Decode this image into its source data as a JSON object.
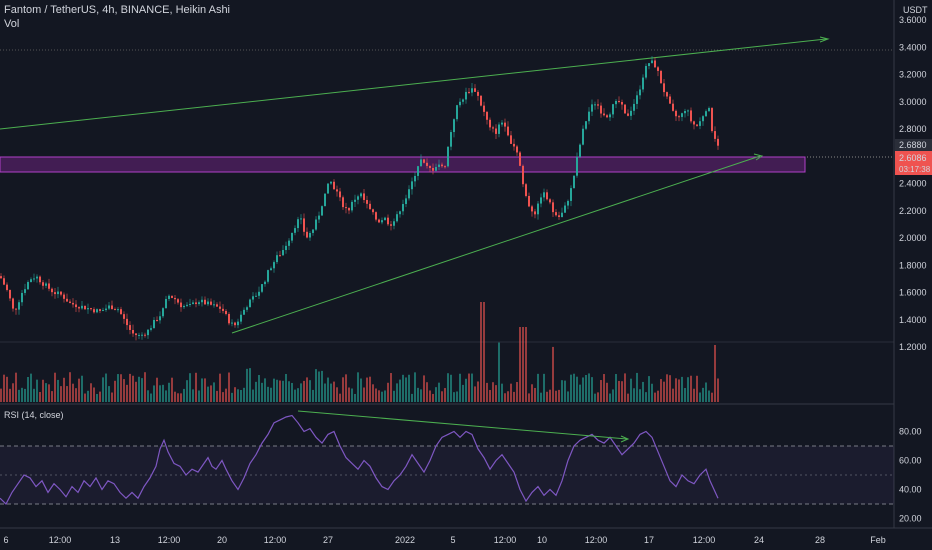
{
  "header": {
    "title": "Fantom / TetherUS, 4h, BINANCE, Heikin Ashi",
    "vol_label": "Vol",
    "currency": "USDT"
  },
  "colors": {
    "background": "#131722",
    "up": "#26a69a",
    "down": "#ef5350",
    "trendline": "#4caf50",
    "zone": "#9c27b0",
    "rsi": "#7e57c2",
    "grid": "#2a2e39"
  },
  "price_badges": {
    "last": "2.6086",
    "countdown": "03:17:38",
    "prev": "2.6880"
  },
  "rsi_label": "RSI (14, close)",
  "chart_data": [
    {
      "type": "candlestick",
      "title": "Fantom / TetherUS, 4h, BINANCE, Heikin Ashi",
      "ylabel": "USDT",
      "ylim": [
        1.2,
        3.6
      ],
      "y_ticks": [
        "3.6000",
        "3.4000",
        "3.2000",
        "3.0000",
        "2.8000",
        "2.6000",
        "2.4000",
        "2.2000",
        "2.0000",
        "1.8000",
        "1.6000",
        "1.4000",
        "1.2000"
      ],
      "x_ticks": [
        "6",
        "12:00",
        "13",
        "12:00",
        "20",
        "12:00",
        "27",
        "2022",
        "5",
        "12:00",
        "10",
        "12:00",
        "17",
        "12:00",
        "24",
        "28",
        "Feb"
      ],
      "close_path": [
        [
          0,
          1.72
        ],
        [
          8,
          1.6
        ],
        [
          14,
          1.45
        ],
        [
          22,
          1.6
        ],
        [
          30,
          1.7
        ],
        [
          36,
          1.72
        ],
        [
          44,
          1.66
        ],
        [
          54,
          1.6
        ],
        [
          62,
          1.58
        ],
        [
          70,
          1.52
        ],
        [
          80,
          1.5
        ],
        [
          90,
          1.48
        ],
        [
          100,
          1.46
        ],
        [
          110,
          1.5
        ],
        [
          118,
          1.48
        ],
        [
          124,
          1.4
        ],
        [
          132,
          1.3
        ],
        [
          140,
          1.28
        ],
        [
          148,
          1.32
        ],
        [
          156,
          1.4
        ],
        [
          162,
          1.45
        ],
        [
          168,
          1.58
        ],
        [
          174,
          1.56
        ],
        [
          182,
          1.5
        ],
        [
          190,
          1.5
        ],
        [
          198,
          1.54
        ],
        [
          206,
          1.52
        ],
        [
          214,
          1.5
        ],
        [
          222,
          1.48
        ],
        [
          228,
          1.4
        ],
        [
          234,
          1.35
        ],
        [
          240,
          1.42
        ],
        [
          246,
          1.5
        ],
        [
          252,
          1.55
        ],
        [
          258,
          1.6
        ],
        [
          264,
          1.68
        ],
        [
          270,
          1.78
        ],
        [
          276,
          1.85
        ],
        [
          282,
          1.9
        ],
        [
          288,
          1.98
        ],
        [
          294,
          2.08
        ],
        [
          300,
          2.15
        ],
        [
          306,
          2.0
        ],
        [
          312,
          2.05
        ],
        [
          318,
          2.15
        ],
        [
          324,
          2.3
        ],
        [
          330,
          2.42
        ],
        [
          336,
          2.35
        ],
        [
          342,
          2.25
        ],
        [
          348,
          2.2
        ],
        [
          354,
          2.28
        ],
        [
          360,
          2.33
        ],
        [
          366,
          2.25
        ],
        [
          372,
          2.18
        ],
        [
          378,
          2.12
        ],
        [
          384,
          2.15
        ],
        [
          390,
          2.1
        ],
        [
          396,
          2.14
        ],
        [
          402,
          2.25
        ],
        [
          408,
          2.32
        ],
        [
          414,
          2.45
        ],
        [
          420,
          2.58
        ],
        [
          426,
          2.52
        ],
        [
          432,
          2.5
        ],
        [
          438,
          2.55
        ],
        [
          444,
          2.5
        ],
        [
          450,
          2.75
        ],
        [
          456,
          2.95
        ],
        [
          462,
          3.02
        ],
        [
          468,
          3.08
        ],
        [
          474,
          3.1
        ],
        [
          478,
          3.04
        ],
        [
          484,
          2.92
        ],
        [
          490,
          2.8
        ],
        [
          496,
          2.78
        ],
        [
          502,
          2.86
        ],
        [
          508,
          2.74
        ],
        [
          514,
          2.68
        ],
        [
          518,
          2.62
        ],
        [
          524,
          2.35
        ],
        [
          530,
          2.22
        ],
        [
          536,
          2.18
        ],
        [
          542,
          2.34
        ],
        [
          548,
          2.28
        ],
        [
          554,
          2.18
        ],
        [
          560,
          2.15
        ],
        [
          566,
          2.24
        ],
        [
          572,
          2.38
        ],
        [
          578,
          2.62
        ],
        [
          584,
          2.82
        ],
        [
          590,
          2.95
        ],
        [
          596,
          3.0
        ],
        [
          602,
          2.92
        ],
        [
          608,
          2.9
        ],
        [
          614,
          2.98
        ],
        [
          620,
          3.0
        ],
        [
          626,
          2.88
        ],
        [
          632,
          2.96
        ],
        [
          638,
          3.05
        ],
        [
          644,
          3.22
        ],
        [
          650,
          3.3
        ],
        [
          656,
          3.26
        ],
        [
          662,
          3.12
        ],
        [
          668,
          3.0
        ],
        [
          674,
          2.9
        ],
        [
          680,
          2.88
        ],
        [
          686,
          2.96
        ],
        [
          692,
          2.84
        ],
        [
          698,
          2.82
        ],
        [
          704,
          2.92
        ],
        [
          708,
          2.98
        ],
        [
          712,
          2.8
        ],
        [
          716,
          2.72
        ],
        [
          720,
          2.6
        ]
      ]
    },
    {
      "type": "bar",
      "title": "Vol",
      "description": "volume bars colored by candle direction"
    },
    {
      "type": "line",
      "title": "RSI (14, close)",
      "ylim": [
        15,
        95
      ],
      "y_ticks": [
        "80.00",
        "60.00",
        "40.00",
        "20.00"
      ],
      "bands": [
        70,
        50,
        30
      ],
      "values": [
        [
          0,
          34
        ],
        [
          6,
          30
        ],
        [
          12,
          38
        ],
        [
          18,
          44
        ],
        [
          24,
          50
        ],
        [
          30,
          48
        ],
        [
          36,
          42
        ],
        [
          42,
          46
        ],
        [
          48,
          38
        ],
        [
          54,
          44
        ],
        [
          60,
          40
        ],
        [
          66,
          35
        ],
        [
          72,
          42
        ],
        [
          78,
          38
        ],
        [
          84,
          46
        ],
        [
          90,
          42
        ],
        [
          96,
          48
        ],
        [
          102,
          40
        ],
        [
          108,
          46
        ],
        [
          114,
          44
        ],
        [
          120,
          38
        ],
        [
          126,
          34
        ],
        [
          132,
          38
        ],
        [
          138,
          34
        ],
        [
          144,
          42
        ],
        [
          150,
          48
        ],
        [
          156,
          56
        ],
        [
          160,
          68
        ],
        [
          164,
          74
        ],
        [
          168,
          66
        ],
        [
          174,
          58
        ],
        [
          180,
          56
        ],
        [
          186,
          50
        ],
        [
          192,
          54
        ],
        [
          198,
          52
        ],
        [
          204,
          58
        ],
        [
          208,
          62
        ],
        [
          212,
          56
        ],
        [
          216,
          54
        ],
        [
          222,
          60
        ],
        [
          226,
          54
        ],
        [
          232,
          46
        ],
        [
          238,
          40
        ],
        [
          244,
          48
        ],
        [
          250,
          58
        ],
        [
          256,
          64
        ],
        [
          262,
          72
        ],
        [
          268,
          78
        ],
        [
          274,
          86
        ],
        [
          280,
          88
        ],
        [
          286,
          90
        ],
        [
          292,
          91
        ],
        [
          298,
          86
        ],
        [
          304,
          80
        ],
        [
          310,
          82
        ],
        [
          316,
          76
        ],
        [
          322,
          72
        ],
        [
          328,
          78
        ],
        [
          334,
          80
        ],
        [
          340,
          70
        ],
        [
          346,
          62
        ],
        [
          352,
          58
        ],
        [
          358,
          54
        ],
        [
          364,
          60
        ],
        [
          370,
          56
        ],
        [
          376,
          48
        ],
        [
          382,
          42
        ],
        [
          388,
          40
        ],
        [
          394,
          46
        ],
        [
          400,
          50
        ],
        [
          406,
          56
        ],
        [
          412,
          64
        ],
        [
          418,
          58
        ],
        [
          424,
          52
        ],
        [
          430,
          60
        ],
        [
          436,
          70
        ],
        [
          442,
          76
        ],
        [
          448,
          78
        ],
        [
          454,
          80
        ],
        [
          460,
          76
        ],
        [
          466,
          80
        ],
        [
          472,
          78
        ],
        [
          478,
          68
        ],
        [
          484,
          62
        ],
        [
          490,
          54
        ],
        [
          496,
          60
        ],
        [
          502,
          64
        ],
        [
          508,
          58
        ],
        [
          514,
          52
        ],
        [
          520,
          40
        ],
        [
          526,
          32
        ],
        [
          532,
          38
        ],
        [
          538,
          42
        ],
        [
          544,
          36
        ],
        [
          550,
          40
        ],
        [
          556,
          36
        ],
        [
          562,
          46
        ],
        [
          568,
          60
        ],
        [
          574,
          70
        ],
        [
          580,
          74
        ],
        [
          586,
          76
        ],
        [
          592,
          78
        ],
        [
          598,
          74
        ],
        [
          604,
          72
        ],
        [
          610,
          76
        ],
        [
          616,
          70
        ],
        [
          622,
          64
        ],
        [
          628,
          68
        ],
        [
          634,
          72
        ],
        [
          640,
          78
        ],
        [
          646,
          80
        ],
        [
          652,
          76
        ],
        [
          658,
          66
        ],
        [
          664,
          56
        ],
        [
          670,
          46
        ],
        [
          676,
          42
        ],
        [
          682,
          50
        ],
        [
          688,
          46
        ],
        [
          694,
          44
        ],
        [
          700,
          50
        ],
        [
          706,
          54
        ],
        [
          710,
          46
        ],
        [
          714,
          40
        ],
        [
          718,
          34
        ]
      ]
    }
  ]
}
